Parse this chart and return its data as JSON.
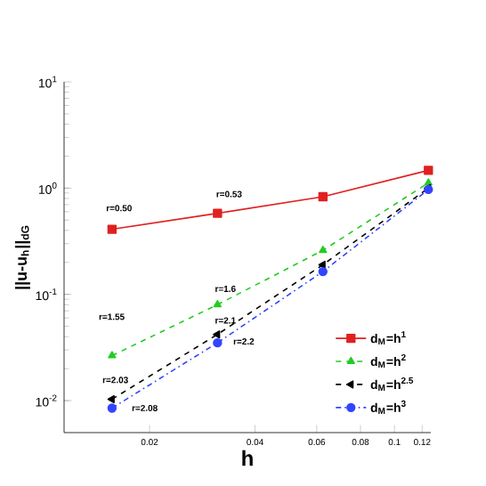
{
  "chart_data": {
    "type": "line",
    "xlabel": "h",
    "ylabel": "||u-u$_{h}$||$_{dG}$",
    "x": [
      0.015625,
      0.03125,
      0.0625,
      0.125
    ],
    "series": [
      {
        "name": "d$_{M}$=h$^{1}$",
        "color": "#e02020",
        "marker": "square",
        "line_style": "solid",
        "values": [
          0.41,
          0.58,
          0.83,
          1.47
        ]
      },
      {
        "name": "d$_{M}$=h$^{2}$",
        "color": "#22cc22",
        "marker": "triangle",
        "line_style": "dashed",
        "values": [
          0.0265,
          0.08,
          0.26,
          1.12
        ]
      },
      {
        "name": "d$_{M}$=h$^{2.5}$",
        "color": "#000000",
        "marker": "triangle left",
        "line_style": "dashed",
        "values": [
          0.0103,
          0.042,
          0.19,
          1.0
        ]
      },
      {
        "name": "d$_{M}$=h$^{3}$",
        "color": "#3344ff",
        "marker": "circle",
        "line_style": "dashdot",
        "values": [
          0.0085,
          0.035,
          0.164,
          0.97
        ]
      }
    ],
    "log": "xy",
    "xlim": [
      0.0114,
      0.127
    ],
    "ylim": [
      0.005,
      10
    ],
    "xticks": [
      0.02,
      0.04,
      0.06,
      0.08,
      0.1,
      0.12
    ],
    "yticks": [
      {
        "value": 0.01,
        "label": "10$^{-2}$"
      },
      {
        "value": 0.1,
        "label": "10$^{-1}$"
      },
      {
        "value": 1,
        "label": "10$^{0}$"
      },
      {
        "value": 10,
        "label": "10$^{1}$"
      }
    ],
    "legend": "bottom right",
    "grid": false,
    "annotations": [
      "r=0.50",
      "r=0.53",
      "r=1.55",
      "r=1.6",
      "r=2.1",
      "r=2.2",
      "r=2.03",
      "r=2.08"
    ]
  }
}
